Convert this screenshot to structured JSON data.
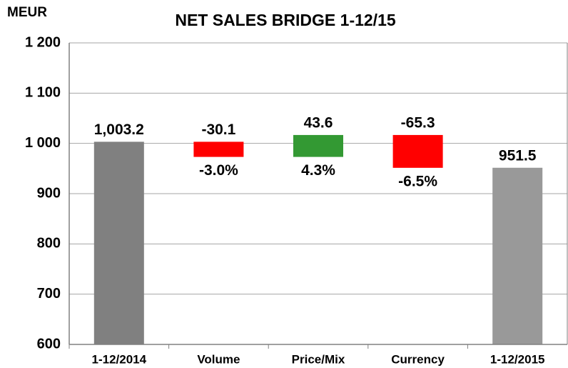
{
  "chart_data": {
    "type": "waterfall",
    "title": "NET SALES BRIDGE 1-12/15",
    "y_label": "MEUR",
    "categories": [
      "1-12/2014",
      "Volume",
      "Price/Mix",
      "Currency",
      "1-12/2015"
    ],
    "values": [
      1003.2,
      -30.1,
      43.6,
      -65.3,
      951.5
    ],
    "value_labels": [
      "1,003.2",
      "-30.1",
      "43.6",
      "-65.3",
      "951.5"
    ],
    "percent_labels": [
      null,
      "-3.0%",
      "4.3%",
      "-6.5%",
      null
    ],
    "colors": [
      "#808080",
      "#ff0000",
      "#339933",
      "#ff0000",
      "#999999"
    ],
    "ylim": [
      600,
      1200
    ],
    "yticks": [
      600,
      700,
      800,
      900,
      {
        "value": 1000,
        "label": "1 000"
      },
      {
        "value": 1100,
        "label": "1 100"
      },
      {
        "value": 1200,
        "label": "1 200"
      }
    ],
    "grid": true
  }
}
